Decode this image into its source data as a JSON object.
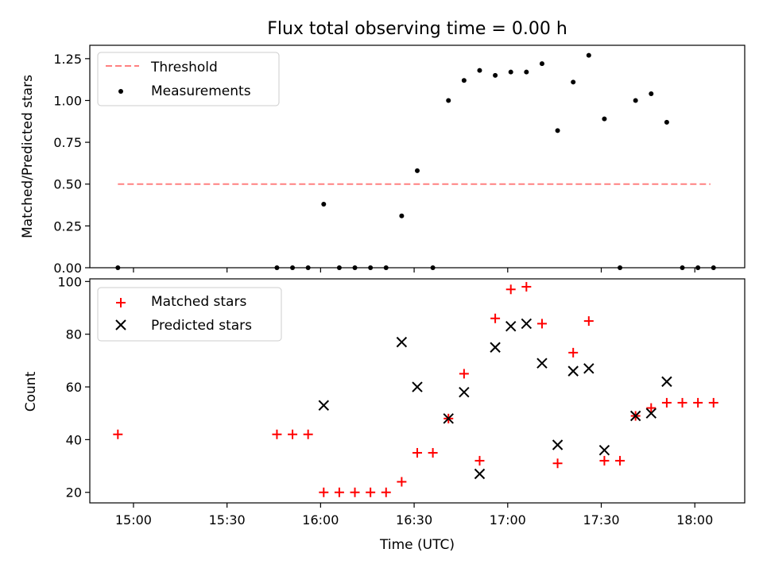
{
  "chart_data": [
    {
      "type": "scatter",
      "title": "Flux total observing time = 0.00 h",
      "ylabel": "Matched/Predicted stars",
      "ylim": [
        0,
        1.33
      ],
      "yticks": [
        "0.00",
        "0.25",
        "0.50",
        "0.75",
        "1.00",
        "1.25"
      ],
      "legend_position": "top-left",
      "series": [
        {
          "name": "Threshold",
          "kind": "dashed-line",
          "color": "#ff8080",
          "x": [
            "14:55",
            "18:05"
          ],
          "y": [
            0.5,
            0.5
          ]
        },
        {
          "name": "Measurements",
          "kind": "dots",
          "color": "#000000",
          "x": [
            "14:55",
            "15:46",
            "15:51",
            "15:56",
            "16:01",
            "16:06",
            "16:11",
            "16:16",
            "16:21",
            "16:26",
            "16:31",
            "16:36",
            "16:41",
            "16:46",
            "16:51",
            "16:56",
            "17:01",
            "17:06",
            "17:11",
            "17:16",
            "17:21",
            "17:26",
            "17:31",
            "17:36",
            "17:41",
            "17:46",
            "17:51",
            "17:56",
            "18:01",
            "18:06"
          ],
          "y": [
            0,
            0,
            0,
            0,
            0.38,
            0,
            0,
            0,
            0,
            0.31,
            0.58,
            0,
            1.0,
            1.12,
            1.18,
            1.15,
            1.17,
            1.17,
            1.22,
            0.82,
            1.11,
            1.27,
            0.89,
            0,
            1.0,
            1.04,
            0.87,
            0,
            0,
            0
          ]
        }
      ]
    },
    {
      "type": "scatter",
      "xlabel": "Time (UTC)",
      "ylabel": "Count",
      "ylim": [
        16,
        101
      ],
      "yticks": [
        "20",
        "40",
        "60",
        "80",
        "100"
      ],
      "xlim": [
        "14:46",
        "18:16"
      ],
      "xticks": [
        "15:00",
        "15:30",
        "16:00",
        "16:30",
        "17:00",
        "17:30",
        "18:00"
      ],
      "legend_position": "top-left",
      "series": [
        {
          "name": "Matched stars",
          "kind": "plus",
          "color": "#ff0000",
          "x": [
            "14:55",
            "15:46",
            "15:51",
            "15:56",
            "16:01",
            "16:06",
            "16:11",
            "16:16",
            "16:21",
            "16:26",
            "16:31",
            "16:36",
            "16:41",
            "16:46",
            "16:51",
            "16:56",
            "17:01",
            "17:06",
            "17:11",
            "17:16",
            "17:21",
            "17:26",
            "17:31",
            "17:36",
            "17:41",
            "17:46",
            "17:51",
            "17:56",
            "18:01",
            "18:06"
          ],
          "y": [
            42,
            42,
            42,
            42,
            20,
            20,
            20,
            20,
            20,
            24,
            35,
            35,
            48,
            65,
            32,
            86,
            97,
            98,
            84,
            31,
            73,
            85,
            32,
            32,
            49,
            52,
            54,
            54,
            54,
            54
          ]
        },
        {
          "name": "Predicted stars",
          "kind": "cross",
          "color": "#000000",
          "x": [
            "16:01",
            "16:26",
            "16:31",
            "16:41",
            "16:46",
            "16:51",
            "16:56",
            "17:01",
            "17:06",
            "17:11",
            "17:16",
            "17:21",
            "17:26",
            "17:31",
            "17:41",
            "17:46",
            "17:51"
          ],
          "y": [
            53,
            77,
            60,
            48,
            58,
            27,
            75,
            83,
            84,
            69,
            38,
            66,
            67,
            36,
            49,
            50,
            62
          ]
        }
      ]
    }
  ]
}
